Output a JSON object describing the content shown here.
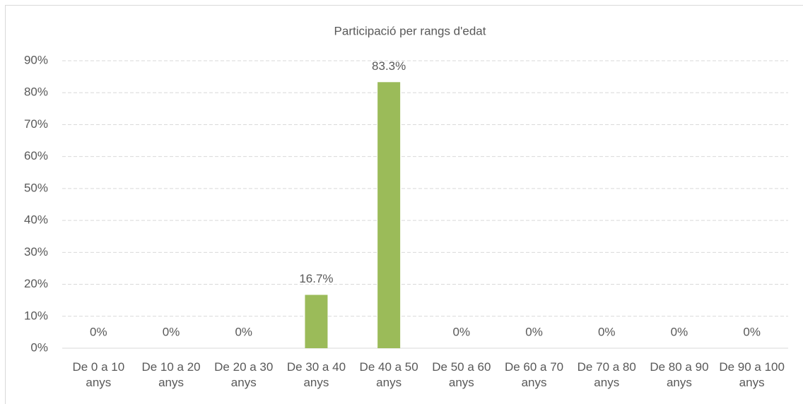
{
  "chart_data": {
    "type": "bar",
    "title": "Participació per rangs d'edat",
    "categories": [
      "De 0 a 10 anys",
      "De 10 a 20 anys",
      "De 20 a 30 anys",
      "De 30 a 40 anys",
      "De 40 a 50 anys",
      "De 50 a 60 anys",
      "De 60 a 70 anys",
      "De 70 a 80 anys",
      "De 80 a 90 anys",
      "De 90 a 100 anys"
    ],
    "values": [
      0,
      0,
      0,
      16.7,
      83.3,
      0,
      0,
      0,
      0,
      0
    ],
    "value_labels": [
      "0%",
      "0%",
      "0%",
      "16.7%",
      "83.3%",
      "0%",
      "0%",
      "0%",
      "0%",
      "0%"
    ],
    "color": "#9bbb59",
    "ylim": [
      0,
      90
    ],
    "yticks": [
      {
        "value": 0,
        "label": "0%"
      },
      {
        "value": 10,
        "label": "10%"
      },
      {
        "value": 20,
        "label": "20%"
      },
      {
        "value": 30,
        "label": "30%"
      },
      {
        "value": 40,
        "label": "40%"
      },
      {
        "value": 50,
        "label": "50%"
      },
      {
        "value": 60,
        "label": "60%"
      },
      {
        "value": 70,
        "label": "70%"
      },
      {
        "value": 80,
        "label": "80%"
      },
      {
        "value": 90,
        "label": "90%"
      }
    ],
    "grid": true
  }
}
